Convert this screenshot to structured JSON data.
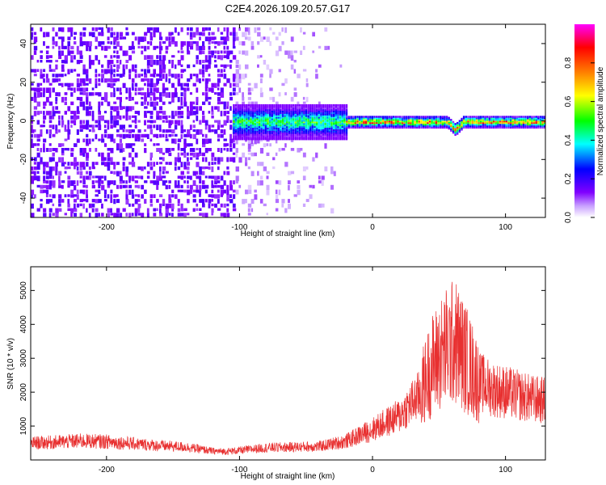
{
  "title": "C2E4.2026.109.20.57.G17",
  "chart_data": [
    {
      "type": "heatmap",
      "title": "C2E4.2026.109.20.57.G17",
      "xlabel": "Height of straight line (km)",
      "ylabel": "Frequency (Hz)",
      "xlim": [
        -257,
        130
      ],
      "ylim": [
        -50,
        50
      ],
      "x_ticks": [
        -200,
        -100,
        0,
        100
      ],
      "y_ticks": [
        -40,
        -20,
        0,
        20,
        40
      ],
      "grid": false,
      "colorbar": {
        "label": "Normalized spectral amplitude",
        "range": [
          0,
          1
        ],
        "ticks": [
          0.0,
          0.2,
          0.4,
          0.6,
          0.8
        ],
        "colormap": [
          "#ffffff",
          "#8000ff",
          "#0000ff",
          "#00ffff",
          "#00ff00",
          "#ffff00",
          "#ff8000",
          "#ff0000",
          "#ff00ff"
        ]
      },
      "signal_band": {
        "center_frequency_hz": 0,
        "segments": [
          {
            "x": [
              -105,
              -20
            ],
            "half_width_hz": 9,
            "amplitude": [
              0.35,
              0.6
            ]
          },
          {
            "x": [
              -20,
              130
            ],
            "half_width_hz": 3,
            "amplitude": [
              0.4,
              0.9
            ]
          }
        ],
        "feature_near_km": 62
      },
      "noise_region_km": [
        -257,
        -105
      ]
    },
    {
      "type": "line",
      "xlabel": "Height of straight line (km)",
      "ylabel": "SNR (10 * v/v)",
      "xlim": [
        -257,
        130
      ],
      "ylim": [
        0,
        5700
      ],
      "x_ticks": [
        -200,
        -100,
        0,
        100
      ],
      "y_ticks": [
        1000,
        2000,
        3000,
        4000,
        5000
      ],
      "grid": false,
      "color": "#e83030",
      "series": [
        {
          "x": [
            -257,
            -240,
            -220,
            -200,
            -180,
            -160,
            -140,
            -120,
            -110,
            -100,
            -80,
            -60,
            -40,
            -20,
            0,
            20,
            35,
            45,
            55,
            62,
            70,
            80,
            90,
            100,
            110,
            120,
            130
          ],
          "values": [
            500,
            520,
            560,
            540,
            480,
            420,
            380,
            260,
            250,
            280,
            360,
            380,
            400,
            550,
            900,
            1300,
            1900,
            2800,
            3300,
            3500,
            3000,
            2300,
            2100,
            2000,
            1900,
            1800,
            1750
          ]
        }
      ]
    }
  ]
}
